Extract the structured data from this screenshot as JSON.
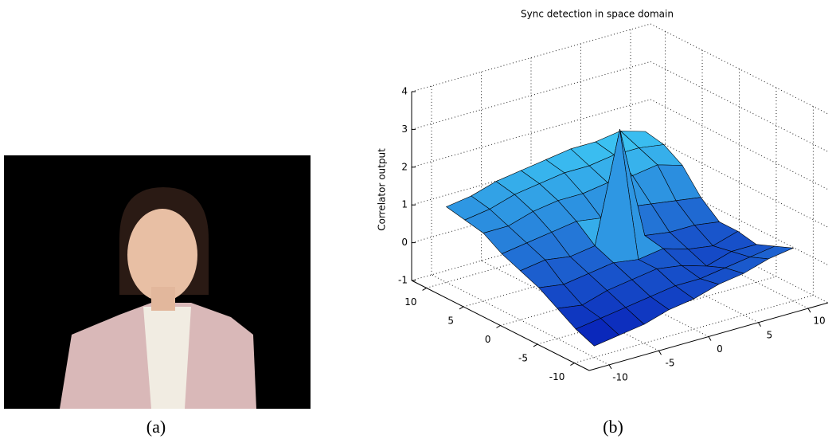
{
  "figure_labels": {
    "a": "(a)",
    "b": "(b)"
  },
  "chart_data": {
    "type": "surface",
    "title": "Sync detection in space domain",
    "zlabel": "Correlator output",
    "x": [
      -10,
      -7.5,
      -5,
      -2.5,
      0,
      2.5,
      5,
      7.5,
      10
    ],
    "y": [
      10,
      7.5,
      5,
      2.5,
      0,
      -2.5,
      -5,
      -7.5,
      -10
    ],
    "z": [
      [
        1.0,
        1.1,
        1.3,
        1.4,
        1.5,
        1.6,
        1.6,
        1.7,
        1.5
      ],
      [
        0.9,
        1.0,
        1.2,
        1.3,
        1.4,
        1.4,
        1.5,
        1.5,
        1.4
      ],
      [
        0.8,
        0.8,
        1.0,
        1.1,
        1.1,
        1.2,
        1.2,
        1.3,
        1.1
      ],
      [
        0.5,
        0.6,
        0.7,
        0.8,
        0.7,
        0.8,
        0.7,
        0.6,
        0.5
      ],
      [
        0.3,
        0.4,
        0.3,
        0.4,
        3.3,
        0.3,
        0.2,
        0.2,
        0.1
      ],
      [
        0.1,
        0.0,
        0.1,
        0.2,
        0.1,
        0.2,
        0.0,
        -0.1,
        0.1
      ],
      [
        -0.2,
        -0.3,
        -0.1,
        0.0,
        0.1,
        0.0,
        -0.2,
        0.0,
        0.0
      ],
      [
        -0.5,
        -0.4,
        -0.3,
        -0.2,
        -0.1,
        -0.1,
        0.0,
        0.1,
        0.2
      ],
      [
        -0.7,
        -0.6,
        -0.5,
        -0.3,
        -0.2,
        0.0,
        0.1,
        0.3,
        0.4
      ]
    ],
    "xlim": [
      -12,
      12
    ],
    "ylim": [
      -12,
      12
    ],
    "zlim": [
      -1,
      4
    ],
    "xticks": [
      -10,
      -5,
      0,
      5,
      10
    ],
    "yticks": [
      10,
      5,
      0,
      -5,
      -10
    ],
    "zticks": [
      -1,
      0,
      1,
      2,
      3,
      4
    ],
    "grid": true,
    "colormap": [
      "#0008b0",
      "#48e8ff"
    ]
  }
}
